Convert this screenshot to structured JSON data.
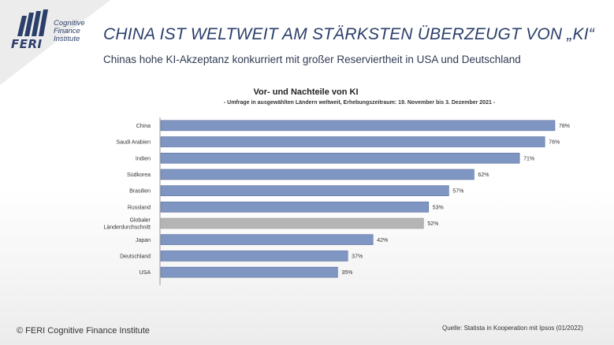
{
  "header": {
    "title": "CHINA IST WELTWEIT AM STÄRKSTEN ÜBERZEUGT VON „KI“",
    "subtitle": "Chinas hohe KI-Akzeptanz konkurriert mit großer Reserviertheit in USA und Deutschland"
  },
  "logo": {
    "name": "FERI",
    "line1": "Cognitive",
    "line2": "Finance",
    "line3": "Institute"
  },
  "chart_data": {
    "type": "bar",
    "orientation": "horizontal",
    "title": "Vor- und Nachteile von KI",
    "subtitle": "- Umfrage in ausgewählten Ländern weltweit, Erhebungszeitraum: 19. November bis 3. Dezember 2021 -",
    "categories": [
      "China",
      "Saudi Arabien",
      "Indien",
      "Südkorea",
      "Brasilien",
      "Russland",
      "Globaler Länderdurchschnitt",
      "Japan",
      "Deutschland",
      "USA"
    ],
    "category_lines": [
      [
        "China"
      ],
      [
        "Saudi Arabien"
      ],
      [
        "Indien"
      ],
      [
        "Südkorea"
      ],
      [
        "Brasilien"
      ],
      [
        "Russland"
      ],
      [
        "Globaler",
        "Länderdurchschnitt"
      ],
      [
        "Japan"
      ],
      [
        "Deutschland"
      ],
      [
        "USA"
      ]
    ],
    "values": [
      78,
      76,
      71,
      62,
      57,
      53,
      52,
      42,
      37,
      35
    ],
    "value_labels": [
      "78%",
      "76%",
      "71%",
      "62%",
      "57%",
      "53%",
      "52%",
      "42%",
      "37%",
      "35%"
    ],
    "highlight_index": 6,
    "colors": {
      "bar": "#7f95c2",
      "bar_border": "#5a6f9e",
      "highlight": "#b5b5b5",
      "highlight_border": "#9a9a9a"
    },
    "xlim": [
      0,
      80
    ],
    "grid": false
  },
  "footer": {
    "copyright": "© FERI Cognitive Finance Institute",
    "source": "Quelle: Statista in Kooperation mit Ipsos (01/2022)"
  }
}
